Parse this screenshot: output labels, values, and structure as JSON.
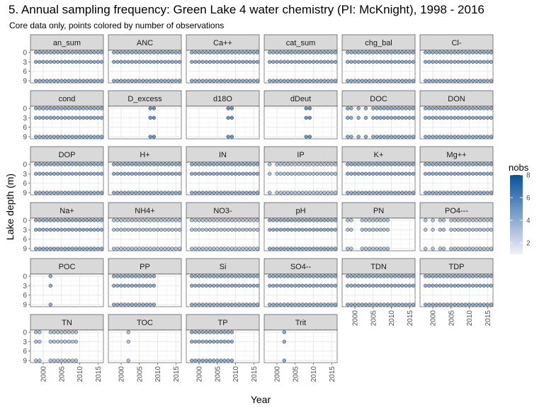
{
  "chart_data": {
    "type": "scatter",
    "title": "5. Annual sampling frequency: Green Lake 4 water chemistry (PI: McKnight), 1998 - 2016",
    "subtitle": "Core data only, points colored by number of observations",
    "xlabel": "Year",
    "ylabel": "Lake depth (m)",
    "xlim": [
      1996.5,
      2016.5
    ],
    "ylim": [
      9,
      0
    ],
    "x_ticks": [
      2000,
      2005,
      2010,
      2015
    ],
    "y_ticks": [
      0,
      3,
      6,
      9
    ],
    "depths": [
      0,
      3,
      9
    ],
    "legend": {
      "title": "nobs",
      "placement": "right",
      "min": 1,
      "max": 8,
      "ticks": [
        2,
        4,
        6,
        8
      ],
      "color_low": "#f2f0f7",
      "color_high": "#08519c"
    },
    "grid": true,
    "panels": [
      {
        "name": "an_sum",
        "years": [
          1998,
          2016
        ],
        "nobs": 4
      },
      {
        "name": "ANC",
        "years": [
          1998,
          2016
        ],
        "nobs": 4
      },
      {
        "name": "Ca++",
        "years": [
          1998,
          2016
        ],
        "nobs": 4
      },
      {
        "name": "cat_sum",
        "years": [
          1998,
          2016
        ],
        "nobs": 4
      },
      {
        "name": "chg_bal",
        "years": [
          1998,
          2016
        ],
        "nobs": 4
      },
      {
        "name": "Cl-",
        "years": [
          1998,
          2016
        ],
        "nobs": 4
      },
      {
        "name": "cond",
        "years": [
          1998,
          2016
        ],
        "nobs": 4
      },
      {
        "name": "D_excess",
        "years": [
          2008,
          2009
        ],
        "nobs": 5
      },
      {
        "name": "d18O",
        "years": [
          2008,
          2009
        ],
        "nobs": 5
      },
      {
        "name": "dDeut",
        "years": [
          2008,
          2009
        ],
        "nobs": 5
      },
      {
        "name": "DOC",
        "years": [
          1998,
          2016
        ],
        "nobs": 4,
        "gaps": [
          2000,
          2002,
          2004
        ]
      },
      {
        "name": "DON",
        "years": [
          1998,
          2016
        ],
        "nobs": 4
      },
      {
        "name": "DOP",
        "years": [
          1998,
          2016
        ],
        "nobs": 4
      },
      {
        "name": "H+",
        "years": [
          1998,
          2016
        ],
        "nobs": 4
      },
      {
        "name": "IN",
        "years": [
          1998,
          2016
        ],
        "nobs": 4
      },
      {
        "name": "IP",
        "years": [
          1998,
          2016
        ],
        "nobs": 3,
        "gaps": [
          1999
        ]
      },
      {
        "name": "K+",
        "years": [
          1998,
          2016
        ],
        "nobs": 4
      },
      {
        "name": "Mg++",
        "years": [
          1998,
          2016
        ],
        "nobs": 4
      },
      {
        "name": "Na+",
        "years": [
          1998,
          2016
        ],
        "nobs": 4
      },
      {
        "name": "NH4+",
        "years": [
          1998,
          2016
        ],
        "nobs": 3
      },
      {
        "name": "NO3-",
        "years": [
          1998,
          2016
        ],
        "nobs": 3
      },
      {
        "name": "pH",
        "years": [
          1998,
          2016
        ],
        "nobs": 4
      },
      {
        "name": "PN",
        "years": [
          1998,
          2009
        ],
        "nobs": 3,
        "gaps": [
          2000,
          2001
        ]
      },
      {
        "name": "PO4---",
        "years": [
          1998,
          2016
        ],
        "nobs": 3,
        "gaps": [
          1999,
          2001,
          2004
        ]
      },
      {
        "name": "POC",
        "years": [
          2002,
          2002
        ],
        "nobs": 4
      },
      {
        "name": "PP",
        "years": [
          1998,
          2009
        ],
        "nobs": 4
      },
      {
        "name": "Si",
        "years": [
          1998,
          2016
        ],
        "nobs": 4
      },
      {
        "name": "SO4--",
        "years": [
          1998,
          2016
        ],
        "nobs": 4
      },
      {
        "name": "TDN",
        "years": [
          1998,
          2016
        ],
        "nobs": 4
      },
      {
        "name": "TDP",
        "years": [
          1998,
          2016
        ],
        "nobs": 4
      },
      {
        "name": "TN",
        "years": [
          1998,
          2009
        ],
        "nobs": 3,
        "gaps": [
          2000,
          2001
        ]
      },
      {
        "name": "TOC",
        "years": [
          2002,
          2002
        ],
        "nobs": 3
      },
      {
        "name": "TP",
        "years": [
          1998,
          2009
        ],
        "nobs": 4
      },
      {
        "name": "Trit",
        "years": [
          2002,
          2002
        ],
        "nobs": 4
      }
    ]
  }
}
